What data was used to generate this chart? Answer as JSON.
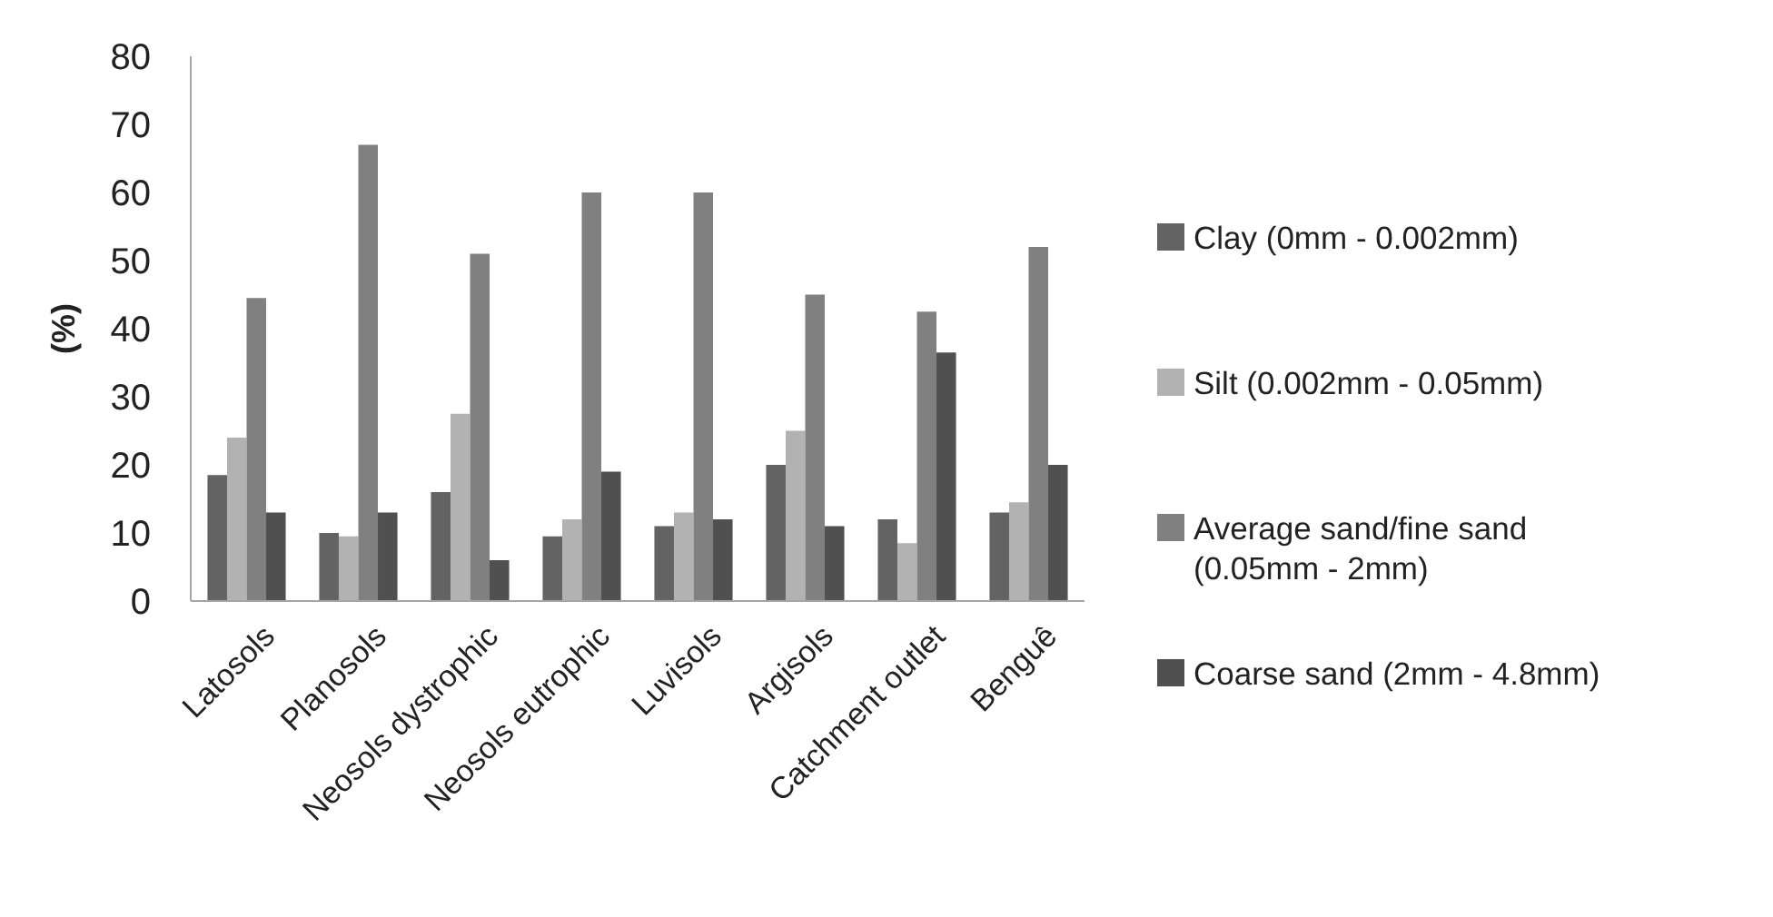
{
  "chart_data": {
    "type": "bar",
    "ylabel": "(%)",
    "categories": [
      "Latosols",
      "Planosols",
      "Neosols dystrophic",
      "Neosols eutrophic",
      "Luvisols",
      "Argisols",
      "Catchment outlet",
      "Benguê"
    ],
    "series": [
      {
        "name": "Clay (0mm - 0.002mm)",
        "color": "#636363",
        "values": [
          18.5,
          10,
          16,
          9.5,
          11,
          20,
          12,
          13
        ]
      },
      {
        "name": "Silt (0.002mm - 0.05mm)",
        "color": "#b2b2b2",
        "values": [
          24,
          9.5,
          27.5,
          12,
          13,
          25,
          8.5,
          14.5
        ]
      },
      {
        "name": "Average sand/fine sand (0.05mm - 2mm)",
        "color": "#808080",
        "values": [
          44.5,
          67,
          51,
          60,
          60,
          45,
          42.5,
          52
        ]
      },
      {
        "name": "Coarse sand (2mm - 4.8mm)",
        "color": "#505050",
        "values": [
          13,
          13,
          6,
          19,
          12,
          11,
          36.5,
          20
        ]
      }
    ],
    "ylim": [
      0,
      80
    ],
    "yticks": [
      0,
      10,
      20,
      30,
      40,
      50,
      60,
      70,
      80
    ],
    "grid": false,
    "legend": "right"
  }
}
